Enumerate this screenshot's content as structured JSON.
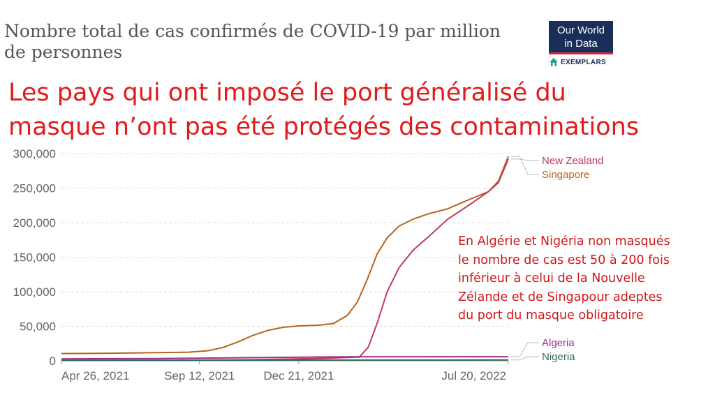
{
  "owid_title": "Nombre total de cas confirmés de COVID-19 par million de personnes",
  "logo": {
    "line1": "Our World",
    "line2": "in Data",
    "sub": "EXEMPLARS"
  },
  "headline_line1": "Les pays qui ont imposé le port généralisé du",
  "headline_line2": "masque n’ont pas été protégés des contaminations",
  "annotation_lines": [
    "En Algérie et Nigéria non masqués",
    "le nombre de cas est 50 à 200 fois",
    "inférieur à celui de la Nouvelle",
    "Zélande et de Singapour adeptes",
    "du  port du masque obligatoire"
  ],
  "chart_data": {
    "type": "line",
    "x_ticks": [
      "Apr 26, 2021",
      "Sep 12, 2021",
      "Dec 21, 2021",
      "Jul 20, 2022"
    ],
    "x_range": [
      "2021-04-26",
      "2022-07-20"
    ],
    "y_ticks": [
      0,
      50000,
      100000,
      150000,
      200000,
      250000,
      300000
    ],
    "y_tick_labels": [
      "0",
      "50,000",
      "100,000",
      "150,000",
      "200,000",
      "250,000",
      "300,000"
    ],
    "ylim": [
      0,
      300000
    ],
    "grid": "horizontal dashed",
    "series": [
      {
        "name": "Singapore",
        "color": "#b5651d",
        "points": [
          [
            "2021-04-26",
            10500
          ],
          [
            "2021-06-15",
            11000
          ],
          [
            "2021-08-01",
            11800
          ],
          [
            "2021-09-01",
            12500
          ],
          [
            "2021-09-20",
            14500
          ],
          [
            "2021-10-05",
            19000
          ],
          [
            "2021-10-20",
            27000
          ],
          [
            "2021-11-05",
            37000
          ],
          [
            "2021-11-20",
            44000
          ],
          [
            "2021-12-05",
            48500
          ],
          [
            "2021-12-21",
            50500
          ],
          [
            "2022-01-10",
            51500
          ],
          [
            "2022-01-25",
            54000
          ],
          [
            "2022-02-08",
            66000
          ],
          [
            "2022-02-18",
            85000
          ],
          [
            "2022-02-28",
            118000
          ],
          [
            "2022-03-10",
            155000
          ],
          [
            "2022-03-20",
            178000
          ],
          [
            "2022-04-01",
            195000
          ],
          [
            "2022-04-15",
            205000
          ],
          [
            "2022-05-01",
            213000
          ],
          [
            "2022-05-20",
            220000
          ],
          [
            "2022-06-10",
            233000
          ],
          [
            "2022-06-30",
            245000
          ],
          [
            "2022-07-10",
            260000
          ],
          [
            "2022-07-20",
            296000
          ]
        ]
      },
      {
        "name": "New Zealand",
        "color": "#c0395c",
        "points": [
          [
            "2021-04-26",
            520
          ],
          [
            "2021-08-01",
            600
          ],
          [
            "2021-11-01",
            1500
          ],
          [
            "2022-01-15",
            3500
          ],
          [
            "2022-02-20",
            5500
          ],
          [
            "2022-03-01",
            20000
          ],
          [
            "2022-03-10",
            55000
          ],
          [
            "2022-03-20",
            100000
          ],
          [
            "2022-04-01",
            135000
          ],
          [
            "2022-04-15",
            160000
          ],
          [
            "2022-05-01",
            180000
          ],
          [
            "2022-05-20",
            205000
          ],
          [
            "2022-06-10",
            225000
          ],
          [
            "2022-06-30",
            245000
          ],
          [
            "2022-07-10",
            258000
          ],
          [
            "2022-07-20",
            292000
          ]
        ]
      },
      {
        "name": "Algeria",
        "color": "#a02c8c",
        "points": [
          [
            "2021-04-26",
            2800
          ],
          [
            "2021-08-01",
            3300
          ],
          [
            "2021-11-01",
            4500
          ],
          [
            "2022-02-01",
            5800
          ],
          [
            "2022-07-20",
            6000
          ]
        ]
      },
      {
        "name": "Nigeria",
        "color": "#2e6b5e",
        "points": [
          [
            "2021-04-26",
            800
          ],
          [
            "2021-09-01",
            950
          ],
          [
            "2022-01-15",
            1150
          ],
          [
            "2022-07-20",
            1200
          ]
        ]
      }
    ]
  }
}
